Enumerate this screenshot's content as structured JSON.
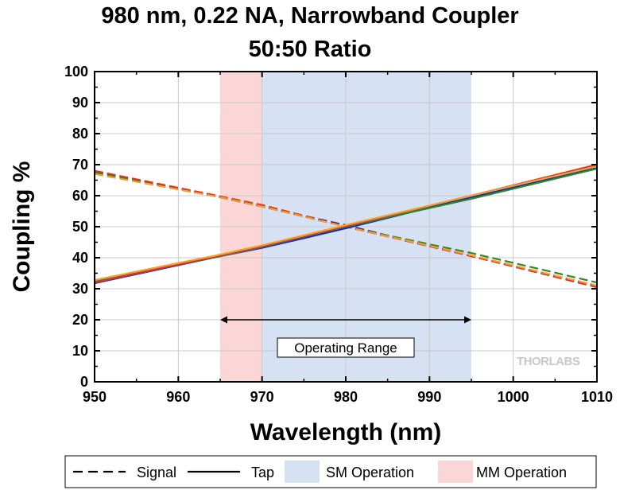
{
  "chart_data": {
    "type": "line",
    "title": "980 nm, 0.22 NA, Narrowband Coupler",
    "subtitle": "50:50 Ratio",
    "xlabel": "Wavelength (nm)",
    "ylabel": "Coupling %",
    "xlim": [
      950,
      1010
    ],
    "ylim": [
      0,
      100
    ],
    "x_ticks": [
      950,
      960,
      970,
      980,
      990,
      1000,
      1010
    ],
    "y_ticks": [
      0,
      10,
      20,
      30,
      40,
      50,
      60,
      70,
      80,
      90,
      100
    ],
    "grid": true,
    "legend_position": "bottom",
    "regions": [
      {
        "name": "MM Operation",
        "x": [
          965,
          970
        ],
        "color": "#fbd6d6"
      },
      {
        "name": "SM Operation",
        "x": [
          970,
          995
        ],
        "color": "#d7e1f4"
      }
    ],
    "annotation": {
      "text": "Operating Range",
      "x": [
        965,
        995
      ],
      "y": 20
    },
    "watermark": "THORLABS",
    "series": [
      {
        "line_style": "dashed",
        "color": "#2020c0",
        "x": [
          950,
          965,
          970,
          975,
          980,
          995,
          1010
        ],
        "y": [
          68,
          59.5,
          56.5,
          53.5,
          50.5,
          40.5,
          31
        ]
      },
      {
        "line_style": "dashed",
        "color": "#2a8a2a",
        "x": [
          950,
          965,
          970,
          980,
          995,
          1010
        ],
        "y": [
          67.5,
          59.5,
          56.5,
          50,
          41.5,
          32
        ]
      },
      {
        "line_style": "dashed",
        "color": "#e03020",
        "x": [
          950,
          965,
          970,
          980,
          995,
          1010
        ],
        "y": [
          68,
          59.8,
          57,
          50,
          40.5,
          30.5
        ]
      },
      {
        "line_style": "dashed",
        "color": "#f0a030",
        "x": [
          950,
          965,
          970,
          980,
          995,
          1010
        ],
        "y": [
          67,
          59.5,
          56.5,
          50,
          40.8,
          31
        ]
      },
      {
        "line_style": "solid",
        "color": "#2020c0",
        "x": [
          950,
          965,
          970,
          975,
          980,
          995,
          1010
        ],
        "y": [
          31.8,
          40.5,
          43.2,
          46.3,
          49.5,
          59.5,
          69
        ]
      },
      {
        "line_style": "solid",
        "color": "#2a8a2a",
        "x": [
          950,
          965,
          970,
          980,
          995,
          1010
        ],
        "y": [
          32.3,
          40.5,
          43.5,
          50,
          59,
          68.7
        ]
      },
      {
        "line_style": "solid",
        "color": "#e03020",
        "x": [
          950,
          965,
          970,
          980,
          995,
          1010
        ],
        "y": [
          32,
          40.7,
          43.7,
          50.2,
          60,
          70
        ]
      },
      {
        "line_style": "solid",
        "color": "#f0a030",
        "x": [
          950,
          965,
          970,
          980,
          995,
          1010
        ],
        "y": [
          32.8,
          41,
          44,
          50.5,
          60,
          69.5
        ]
      }
    ],
    "legend": [
      {
        "label": "Signal",
        "style": "dashed",
        "color": "#000000"
      },
      {
        "label": "Tap",
        "style": "solid",
        "color": "#000000"
      },
      {
        "label": "SM Operation",
        "style": "box",
        "color": "#d7e1f4"
      },
      {
        "label": "MM Operation",
        "style": "box",
        "color": "#fbd6d6"
      }
    ]
  }
}
